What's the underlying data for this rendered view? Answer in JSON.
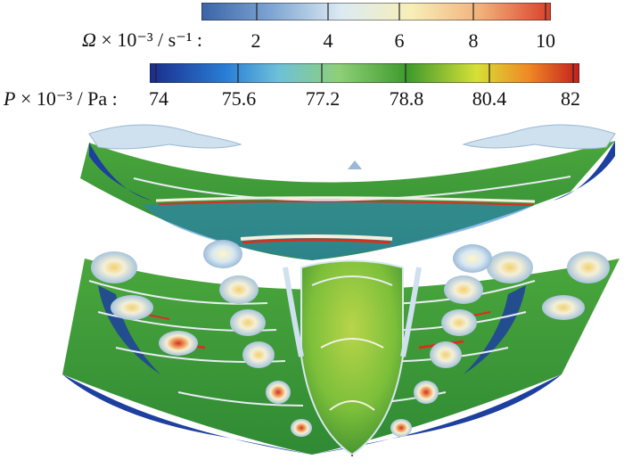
{
  "legend_top": {
    "symbol": "Ω",
    "label_rest": "× 10⁻³ / s⁻¹ :",
    "ticks": [
      "2",
      "4",
      "6",
      "8",
      "10"
    ],
    "colors": [
      "#3a63a8",
      "#7ea5d2",
      "#dceaf4",
      "#f7efb8",
      "#f2b07a",
      "#d8402a"
    ]
  },
  "legend_bottom": {
    "symbol": "P",
    "label_rest": "× 10⁻³ / Pa :",
    "ticks": [
      "74",
      "75.6",
      "77.2",
      "78.8",
      "80.4",
      "82"
    ],
    "colors": [
      "#1a2c8c",
      "#2a7fd6",
      "#6ec1d8",
      "#8fcf78",
      "#3f9a2c",
      "#d6e036",
      "#f08a24",
      "#c41e1e"
    ]
  },
  "figure": {
    "colors": {
      "green": "#3f9e3a",
      "green_light": "#8ccf4a",
      "blue_dark": "#1a3a9a",
      "blue_edge": "#2466c0",
      "vortex": "#cfe0ee",
      "red": "#d83020",
      "yellow": "#e8e060"
    }
  }
}
